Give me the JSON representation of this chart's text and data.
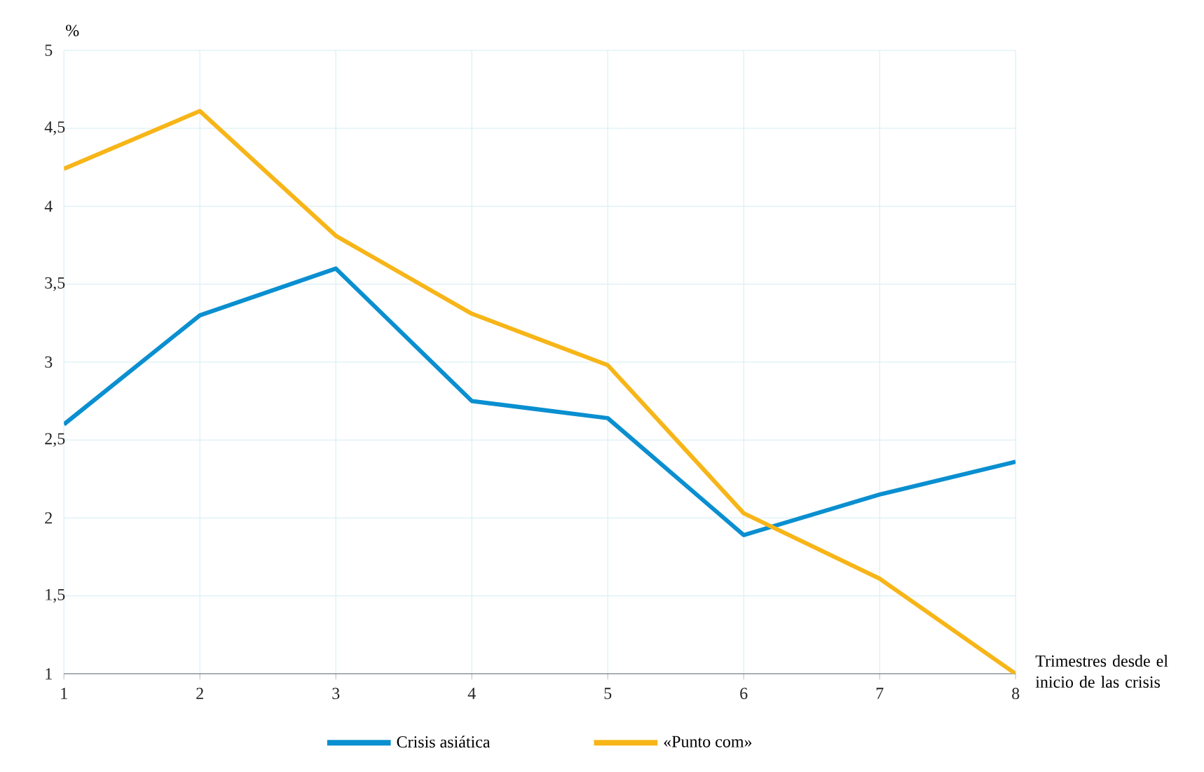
{
  "chart_data": {
    "type": "line",
    "xlabel": "Trimestres desde el inicio de las crisis",
    "ylabel": "%",
    "x": [
      1,
      2,
      3,
      4,
      5,
      6,
      7,
      8
    ],
    "series": [
      {
        "name": "Crisis asiática",
        "color": "#0a8fd0",
        "values": [
          2.6,
          3.3,
          3.6,
          2.75,
          2.64,
          1.89,
          2.15,
          2.36
        ]
      },
      {
        "name": "«Punto com»",
        "color": "#f7b518",
        "values": [
          4.24,
          4.61,
          3.81,
          3.31,
          2.98,
          2.03,
          1.61,
          1.0
        ]
      }
    ],
    "xlim": [
      1,
      8
    ],
    "xticks": [
      1,
      2,
      3,
      4,
      5,
      6,
      7,
      8
    ],
    "ylim": [
      1,
      5
    ],
    "yticks": [
      1,
      {
        "value": 1.5,
        "label": "1,5"
      },
      2,
      {
        "value": 2.5,
        "label": "2,5"
      },
      3,
      {
        "value": 3.5,
        "label": "3,5"
      },
      4,
      {
        "value": 4.5,
        "label": "4,5"
      },
      5
    ],
    "grid": true,
    "legend": "bottom",
    "marker": "none",
    "line_style": "solid"
  }
}
